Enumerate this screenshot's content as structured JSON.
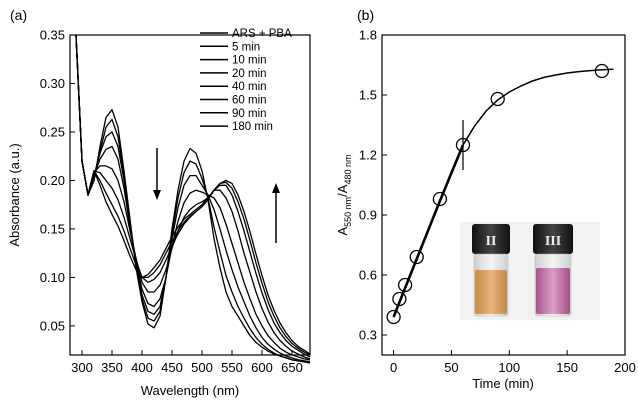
{
  "chart_data": [
    {
      "panel": "(a)",
      "type": "line",
      "xlabel": "Wavelength (nm)",
      "ylabel": "Absorbance (a.u.)",
      "xlim": [
        280,
        680
      ],
      "ylim": [
        0.02,
        0.35
      ],
      "xticks": [
        300,
        350,
        400,
        450,
        500,
        550,
        600,
        650
      ],
      "yticks": [
        0.05,
        0.1,
        0.15,
        0.2,
        0.25,
        0.3,
        0.35
      ],
      "ytick_labels": [
        "0.05",
        "0.10",
        "0.15",
        "0.20",
        "0.25",
        "0.30",
        "0.35"
      ],
      "legend_position": "top-right",
      "series": [
        {
          "name": "ARS + PBA",
          "x": [
            290,
            300,
            310,
            320,
            330,
            340,
            350,
            360,
            370,
            380,
            390,
            400,
            410,
            420,
            430,
            440,
            450,
            460,
            470,
            480,
            490,
            500,
            510,
            520,
            530,
            540,
            550,
            560,
            570,
            580,
            590,
            600,
            610,
            620,
            630,
            640,
            650,
            660,
            670,
            680
          ],
          "y": [
            0.35,
            0.22,
            0.185,
            0.2,
            0.235,
            0.265,
            0.273,
            0.255,
            0.21,
            0.16,
            0.11,
            0.075,
            0.052,
            0.048,
            0.06,
            0.1,
            0.15,
            0.19,
            0.22,
            0.233,
            0.228,
            0.21,
            0.18,
            0.14,
            0.11,
            0.085,
            0.07,
            0.06,
            0.05,
            0.04,
            0.033,
            0.028,
            0.024,
            0.021,
            0.019,
            0.017,
            0.015,
            0.014,
            0.013,
            0.012
          ]
        },
        {
          "name": "5 min",
          "x": [
            290,
            300,
            310,
            320,
            330,
            340,
            350,
            360,
            370,
            380,
            390,
            400,
            410,
            420,
            430,
            440,
            450,
            460,
            470,
            480,
            490,
            500,
            510,
            520,
            530,
            540,
            550,
            560,
            570,
            580,
            590,
            600,
            610,
            620,
            630,
            640,
            650,
            660,
            670,
            680
          ],
          "y": [
            0.35,
            0.22,
            0.185,
            0.2,
            0.23,
            0.255,
            0.263,
            0.245,
            0.205,
            0.158,
            0.112,
            0.078,
            0.058,
            0.055,
            0.065,
            0.1,
            0.145,
            0.182,
            0.208,
            0.22,
            0.217,
            0.202,
            0.182,
            0.152,
            0.126,
            0.102,
            0.085,
            0.07,
            0.058,
            0.047,
            0.038,
            0.031,
            0.026,
            0.022,
            0.019,
            0.017,
            0.015,
            0.014,
            0.013,
            0.012
          ]
        },
        {
          "name": "10 min",
          "x": [
            290,
            300,
            310,
            320,
            330,
            340,
            350,
            360,
            370,
            380,
            390,
            400,
            410,
            420,
            430,
            440,
            450,
            460,
            470,
            480,
            490,
            500,
            510,
            520,
            530,
            540,
            550,
            560,
            570,
            580,
            590,
            600,
            610,
            620,
            630,
            640,
            650,
            660,
            670,
            680
          ],
          "y": [
            0.35,
            0.22,
            0.185,
            0.205,
            0.228,
            0.245,
            0.25,
            0.235,
            0.2,
            0.155,
            0.115,
            0.082,
            0.065,
            0.062,
            0.07,
            0.1,
            0.14,
            0.172,
            0.195,
            0.205,
            0.205,
            0.195,
            0.185,
            0.17,
            0.15,
            0.128,
            0.108,
            0.09,
            0.075,
            0.06,
            0.048,
            0.038,
            0.031,
            0.026,
            0.022,
            0.019,
            0.017,
            0.015,
            0.014,
            0.013
          ]
        },
        {
          "name": "20 min",
          "x": [
            290,
            300,
            310,
            320,
            330,
            340,
            350,
            360,
            370,
            380,
            390,
            400,
            410,
            420,
            430,
            440,
            450,
            460,
            470,
            480,
            490,
            500,
            510,
            520,
            530,
            540,
            550,
            560,
            570,
            580,
            590,
            600,
            610,
            620,
            630,
            640,
            650,
            660,
            670,
            680
          ],
          "y": [
            0.35,
            0.22,
            0.185,
            0.205,
            0.222,
            0.232,
            0.235,
            0.222,
            0.192,
            0.152,
            0.118,
            0.088,
            0.073,
            0.07,
            0.078,
            0.1,
            0.132,
            0.158,
            0.177,
            0.187,
            0.19,
            0.188,
            0.185,
            0.182,
            0.172,
            0.155,
            0.135,
            0.115,
            0.095,
            0.078,
            0.062,
            0.05,
            0.04,
            0.033,
            0.027,
            0.023,
            0.02,
            0.018,
            0.016,
            0.015
          ]
        },
        {
          "name": "40 min",
          "x": [
            290,
            300,
            310,
            320,
            330,
            340,
            350,
            360,
            370,
            380,
            390,
            400,
            410,
            420,
            430,
            440,
            450,
            460,
            470,
            480,
            490,
            500,
            510,
            520,
            530,
            540,
            550,
            560,
            570,
            580,
            590,
            600,
            610,
            620,
            630,
            640,
            650,
            660,
            670,
            680
          ],
          "y": [
            0.35,
            0.22,
            0.185,
            0.208,
            0.215,
            0.215,
            0.212,
            0.2,
            0.178,
            0.148,
            0.12,
            0.095,
            0.085,
            0.085,
            0.092,
            0.108,
            0.13,
            0.148,
            0.162,
            0.17,
            0.175,
            0.178,
            0.182,
            0.19,
            0.19,
            0.182,
            0.168,
            0.148,
            0.125,
            0.105,
            0.085,
            0.068,
            0.054,
            0.043,
            0.035,
            0.029,
            0.024,
            0.021,
            0.018,
            0.016
          ]
        },
        {
          "name": "60 min",
          "x": [
            290,
            300,
            310,
            320,
            330,
            340,
            350,
            360,
            370,
            380,
            390,
            400,
            410,
            420,
            430,
            440,
            450,
            460,
            470,
            480,
            490,
            500,
            510,
            520,
            530,
            540,
            550,
            560,
            570,
            580,
            590,
            600,
            610,
            620,
            630,
            640,
            650,
            660,
            670,
            680
          ],
          "y": [
            0.35,
            0.22,
            0.185,
            0.21,
            0.208,
            0.2,
            0.192,
            0.18,
            0.162,
            0.14,
            0.118,
            0.1,
            0.095,
            0.098,
            0.105,
            0.118,
            0.132,
            0.145,
            0.155,
            0.162,
            0.168,
            0.173,
            0.18,
            0.19,
            0.195,
            0.195,
            0.185,
            0.168,
            0.148,
            0.126,
            0.104,
            0.084,
            0.067,
            0.053,
            0.043,
            0.035,
            0.029,
            0.025,
            0.021,
            0.018
          ]
        },
        {
          "name": "90 min",
          "x": [
            290,
            300,
            310,
            320,
            330,
            340,
            350,
            360,
            370,
            380,
            390,
            400,
            410,
            420,
            430,
            440,
            450,
            460,
            470,
            480,
            490,
            500,
            510,
            520,
            530,
            540,
            550,
            560,
            570,
            580,
            590,
            600,
            610,
            620,
            630,
            640,
            650,
            660,
            670,
            680
          ],
          "y": [
            0.35,
            0.22,
            0.185,
            0.21,
            0.2,
            0.187,
            0.175,
            0.163,
            0.148,
            0.13,
            0.113,
            0.1,
            0.1,
            0.105,
            0.113,
            0.125,
            0.137,
            0.148,
            0.157,
            0.163,
            0.168,
            0.173,
            0.18,
            0.19,
            0.197,
            0.198,
            0.192,
            0.178,
            0.16,
            0.138,
            0.115,
            0.094,
            0.075,
            0.06,
            0.048,
            0.039,
            0.032,
            0.027,
            0.023,
            0.02
          ]
        },
        {
          "name": "180 min",
          "x": [
            290,
            300,
            310,
            320,
            330,
            340,
            350,
            360,
            370,
            380,
            390,
            400,
            410,
            420,
            430,
            440,
            450,
            460,
            470,
            480,
            490,
            500,
            510,
            520,
            530,
            540,
            550,
            560,
            570,
            580,
            590,
            600,
            610,
            620,
            630,
            640,
            650,
            660,
            670,
            680
          ],
          "y": [
            0.35,
            0.22,
            0.185,
            0.21,
            0.195,
            0.178,
            0.165,
            0.153,
            0.138,
            0.122,
            0.108,
            0.1,
            0.103,
            0.11,
            0.118,
            0.13,
            0.142,
            0.152,
            0.16,
            0.165,
            0.17,
            0.175,
            0.182,
            0.19,
            0.197,
            0.2,
            0.197,
            0.185,
            0.168,
            0.147,
            0.124,
            0.102,
            0.082,
            0.066,
            0.053,
            0.043,
            0.035,
            0.029,
            0.025,
            0.021
          ]
        }
      ]
    },
    {
      "panel": "(b)",
      "type": "scatter",
      "xlabel": "Time (min)",
      "ylabel_main": "A",
      "ylabel_sub1": "550 nm",
      "ylabel_mid": "/A",
      "ylabel_sub2": "480 nm",
      "xlim": [
        -10,
        200
      ],
      "ylim": [
        0.2,
        1.8
      ],
      "xticks": [
        0,
        50,
        100,
        150,
        200
      ],
      "yticks": [
        0.3,
        0.6,
        0.9,
        1.2,
        1.5,
        1.8
      ],
      "ytick_labels": [
        "0.3",
        "0.6",
        "0.9",
        "1.2",
        "1.5",
        "1.8"
      ],
      "points": {
        "x": [
          0,
          5,
          10,
          20,
          40,
          60,
          90,
          180
        ],
        "y": [
          0.39,
          0.48,
          0.55,
          0.69,
          0.98,
          1.25,
          1.48,
          1.62
        ]
      },
      "fit_line": {
        "x": [
          0,
          10,
          20,
          30,
          40,
          50,
          60
        ],
        "y": [
          0.39,
          0.535,
          0.68,
          0.825,
          0.97,
          1.11,
          1.25
        ]
      },
      "fit_curve": {
        "x": [
          60,
          70,
          80,
          90,
          100,
          110,
          120,
          130,
          140,
          150,
          160,
          170,
          180,
          190
        ],
        "y": [
          1.25,
          1.345,
          1.42,
          1.475,
          1.515,
          1.545,
          1.57,
          1.588,
          1.6,
          1.61,
          1.617,
          1.622,
          1.626,
          1.629
        ]
      },
      "marker_x": 60,
      "inset_labels": [
        "II",
        "III"
      ]
    }
  ]
}
